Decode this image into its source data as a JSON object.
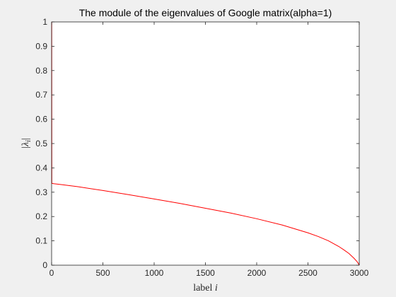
{
  "chart_data": {
    "type": "line",
    "title": "The module of the eigenvalues of Google matrix(alpha=1)",
    "xlabel_text": "label ",
    "xlabel_var": "i",
    "ylabel_text": "|λ",
    "ylabel_sub": "i",
    "ylabel_end": "|",
    "xlim": [
      0,
      3000
    ],
    "ylim": [
      0,
      1
    ],
    "xticks": [
      "0",
      "500",
      "1000",
      "1500",
      "2000",
      "2500",
      "3000"
    ],
    "xtick_values": [
      0,
      500,
      1000,
      1500,
      2000,
      2500,
      3000
    ],
    "yticks": [
      "0",
      "0.1",
      "0.2",
      "0.3",
      "0.4",
      "0.5",
      "0.6",
      "0.7",
      "0.8",
      "0.9",
      "1"
    ],
    "ytick_values": [
      0,
      0.1,
      0.2,
      0.3,
      0.4,
      0.5,
      0.6,
      0.7,
      0.8,
      0.9,
      1
    ],
    "grid": false,
    "series": [
      {
        "color": "#ff0000",
        "x": [
          1,
          2,
          5,
          20,
          100,
          250,
          500,
          750,
          1000,
          1250,
          1500,
          1750,
          2000,
          2250,
          2500,
          2600,
          2700,
          2800,
          2850,
          2900,
          2950,
          2980,
          2995,
          3000
        ],
        "y": [
          1.0,
          0.337,
          0.336,
          0.335,
          0.331,
          0.323,
          0.307,
          0.29,
          0.272,
          0.254,
          0.234,
          0.214,
          0.191,
          0.165,
          0.133,
          0.118,
          0.1,
          0.077,
          0.063,
          0.048,
          0.028,
          0.014,
          0.004,
          0.0
        ]
      }
    ]
  }
}
